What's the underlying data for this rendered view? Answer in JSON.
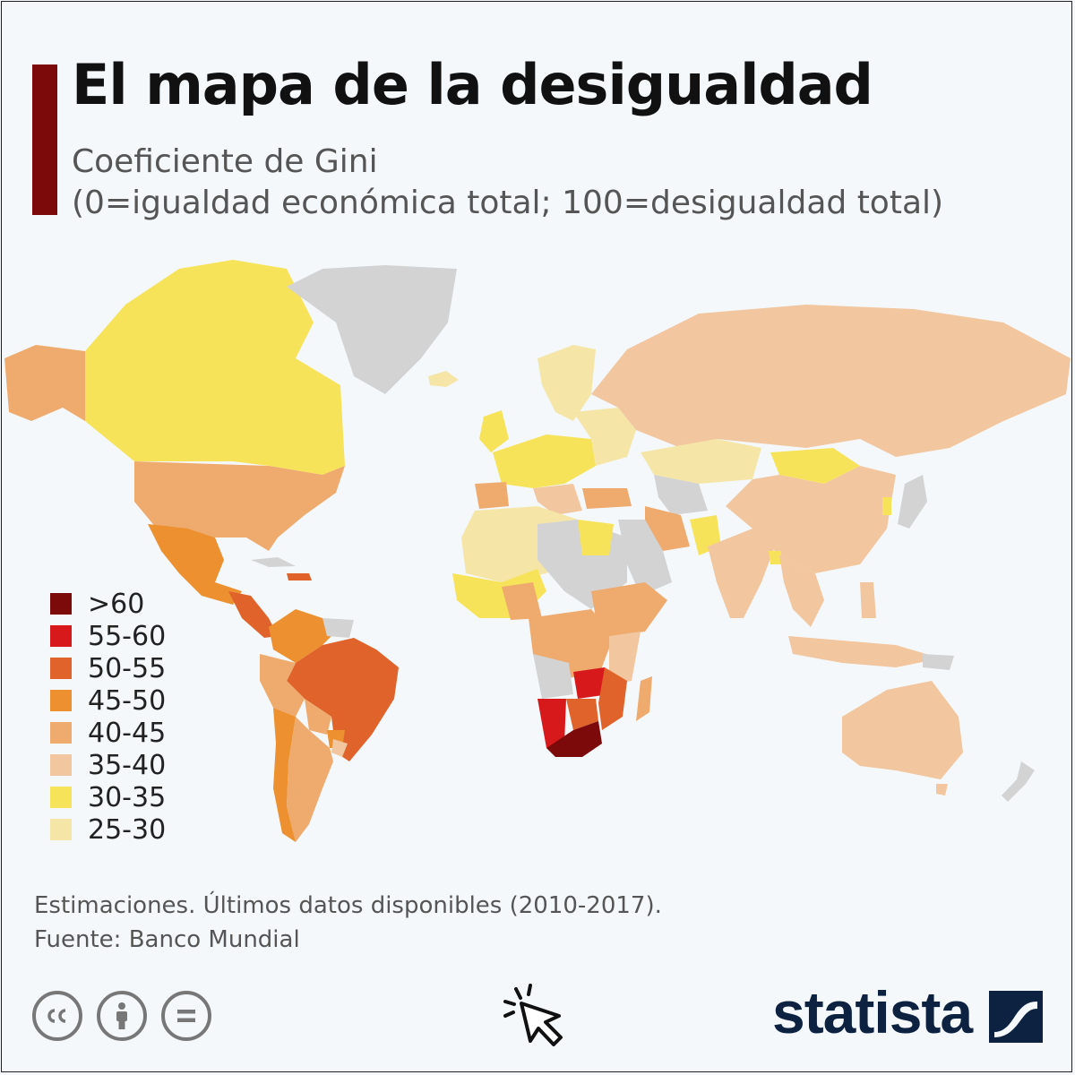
{
  "title": "El mapa de la desigualdad",
  "subtitle_line1": "Coeficiente de Gini",
  "subtitle_line2": "(0=igualdad económica total; 100=desigualdad total)",
  "legend": [
    {
      "label": ">60",
      "color": "#7c0a0a"
    },
    {
      "label": "55-60",
      "color": "#d7191c"
    },
    {
      "label": "50-55",
      "color": "#e0632b"
    },
    {
      "label": "45-50",
      "color": "#ec9030"
    },
    {
      "label": "40-45",
      "color": "#efaa6e"
    },
    {
      "label": "35-40",
      "color": "#f2c69e"
    },
    {
      "label": "30-35",
      "color": "#f7e35a"
    },
    {
      "label": "25-30",
      "color": "#f5e6a8"
    }
  ],
  "no_data_color": "#d3d3d3",
  "note": "Estimaciones. Últimos datos disponibles (2010-2017).",
  "source": "Fuente: Banco Mundial",
  "brand": "statista",
  "icons": [
    "cc-icon",
    "attribution-icon",
    "noderivs-icon",
    "cursor-click-icon",
    "statista-logo-icon"
  ]
}
